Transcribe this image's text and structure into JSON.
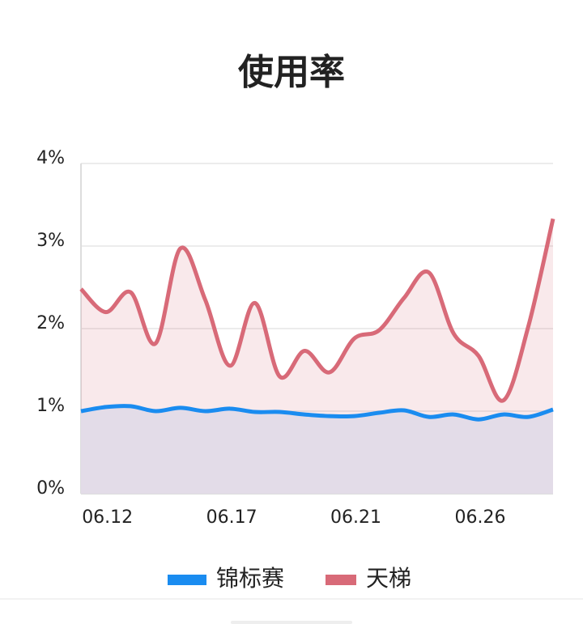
{
  "chart_data": {
    "type": "line",
    "title": "使用率",
    "categories": [
      null,
      "06.12",
      null,
      null,
      null,
      null,
      "06.17",
      null,
      null,
      null,
      null,
      "06.21",
      null,
      null,
      null,
      null,
      "06.26",
      null,
      null,
      null
    ],
    "series": [
      {
        "name": "锦标赛",
        "color": "#1a8cf0",
        "values": [
          1.0,
          1.05,
          1.06,
          1.0,
          1.04,
          1.0,
          1.03,
          0.99,
          0.99,
          0.96,
          0.94,
          0.94,
          0.98,
          1.01,
          0.93,
          0.96,
          0.9,
          0.96,
          0.93,
          1.02
        ]
      },
      {
        "name": "天梯",
        "color": "#d86a78",
        "values": [
          2.48,
          2.2,
          2.44,
          1.82,
          2.97,
          2.35,
          1.55,
          2.31,
          1.42,
          1.73,
          1.47,
          1.88,
          1.98,
          2.37,
          2.68,
          1.94,
          1.67,
          1.13,
          2.02,
          3.33
        ]
      }
    ],
    "ylim": [
      0,
      4
    ],
    "yticks": [
      {
        "value": 0,
        "label": "0%"
      },
      {
        "value": 1,
        "label": "1%"
      },
      {
        "value": 2,
        "label": "2%"
      },
      {
        "value": 3,
        "label": "3%"
      },
      {
        "value": 4,
        "label": "4%"
      }
    ],
    "grid": true,
    "area": true,
    "smooth": true,
    "legend": "bottom"
  }
}
